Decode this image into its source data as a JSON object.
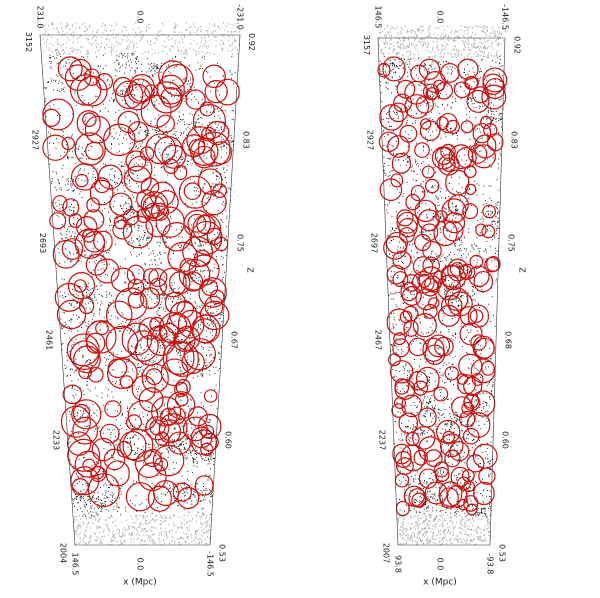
{
  "panels": [
    {
      "distance": [
        "3152",
        "2927",
        "2693",
        "2461",
        "2233",
        "2004"
      ],
      "redshift": [
        "0.92",
        "0.83",
        "0.75",
        "0.67",
        "0.60",
        "0.53"
      ],
      "x_top": [
        "231.0",
        "0.0",
        "-231.0"
      ],
      "x_bottom": [
        "146.5",
        "0.0",
        "-146.5"
      ],
      "z_label": "Z",
      "x_label": "x (Mpc)"
    },
    {
      "distance": [
        "3157",
        "2927",
        "2697",
        "2467",
        "2237",
        "2007"
      ],
      "redshift": [
        "0.92",
        "0.83",
        "0.75",
        "0.68",
        "0.60",
        "0.53"
      ],
      "x_top": [
        "146.5",
        "0.0",
        "-146.5"
      ],
      "x_bottom": [
        "93.8",
        "0.0",
        "-93.8"
      ],
      "z_label": "Z",
      "x_label": "x (Mpc)"
    }
  ]
}
